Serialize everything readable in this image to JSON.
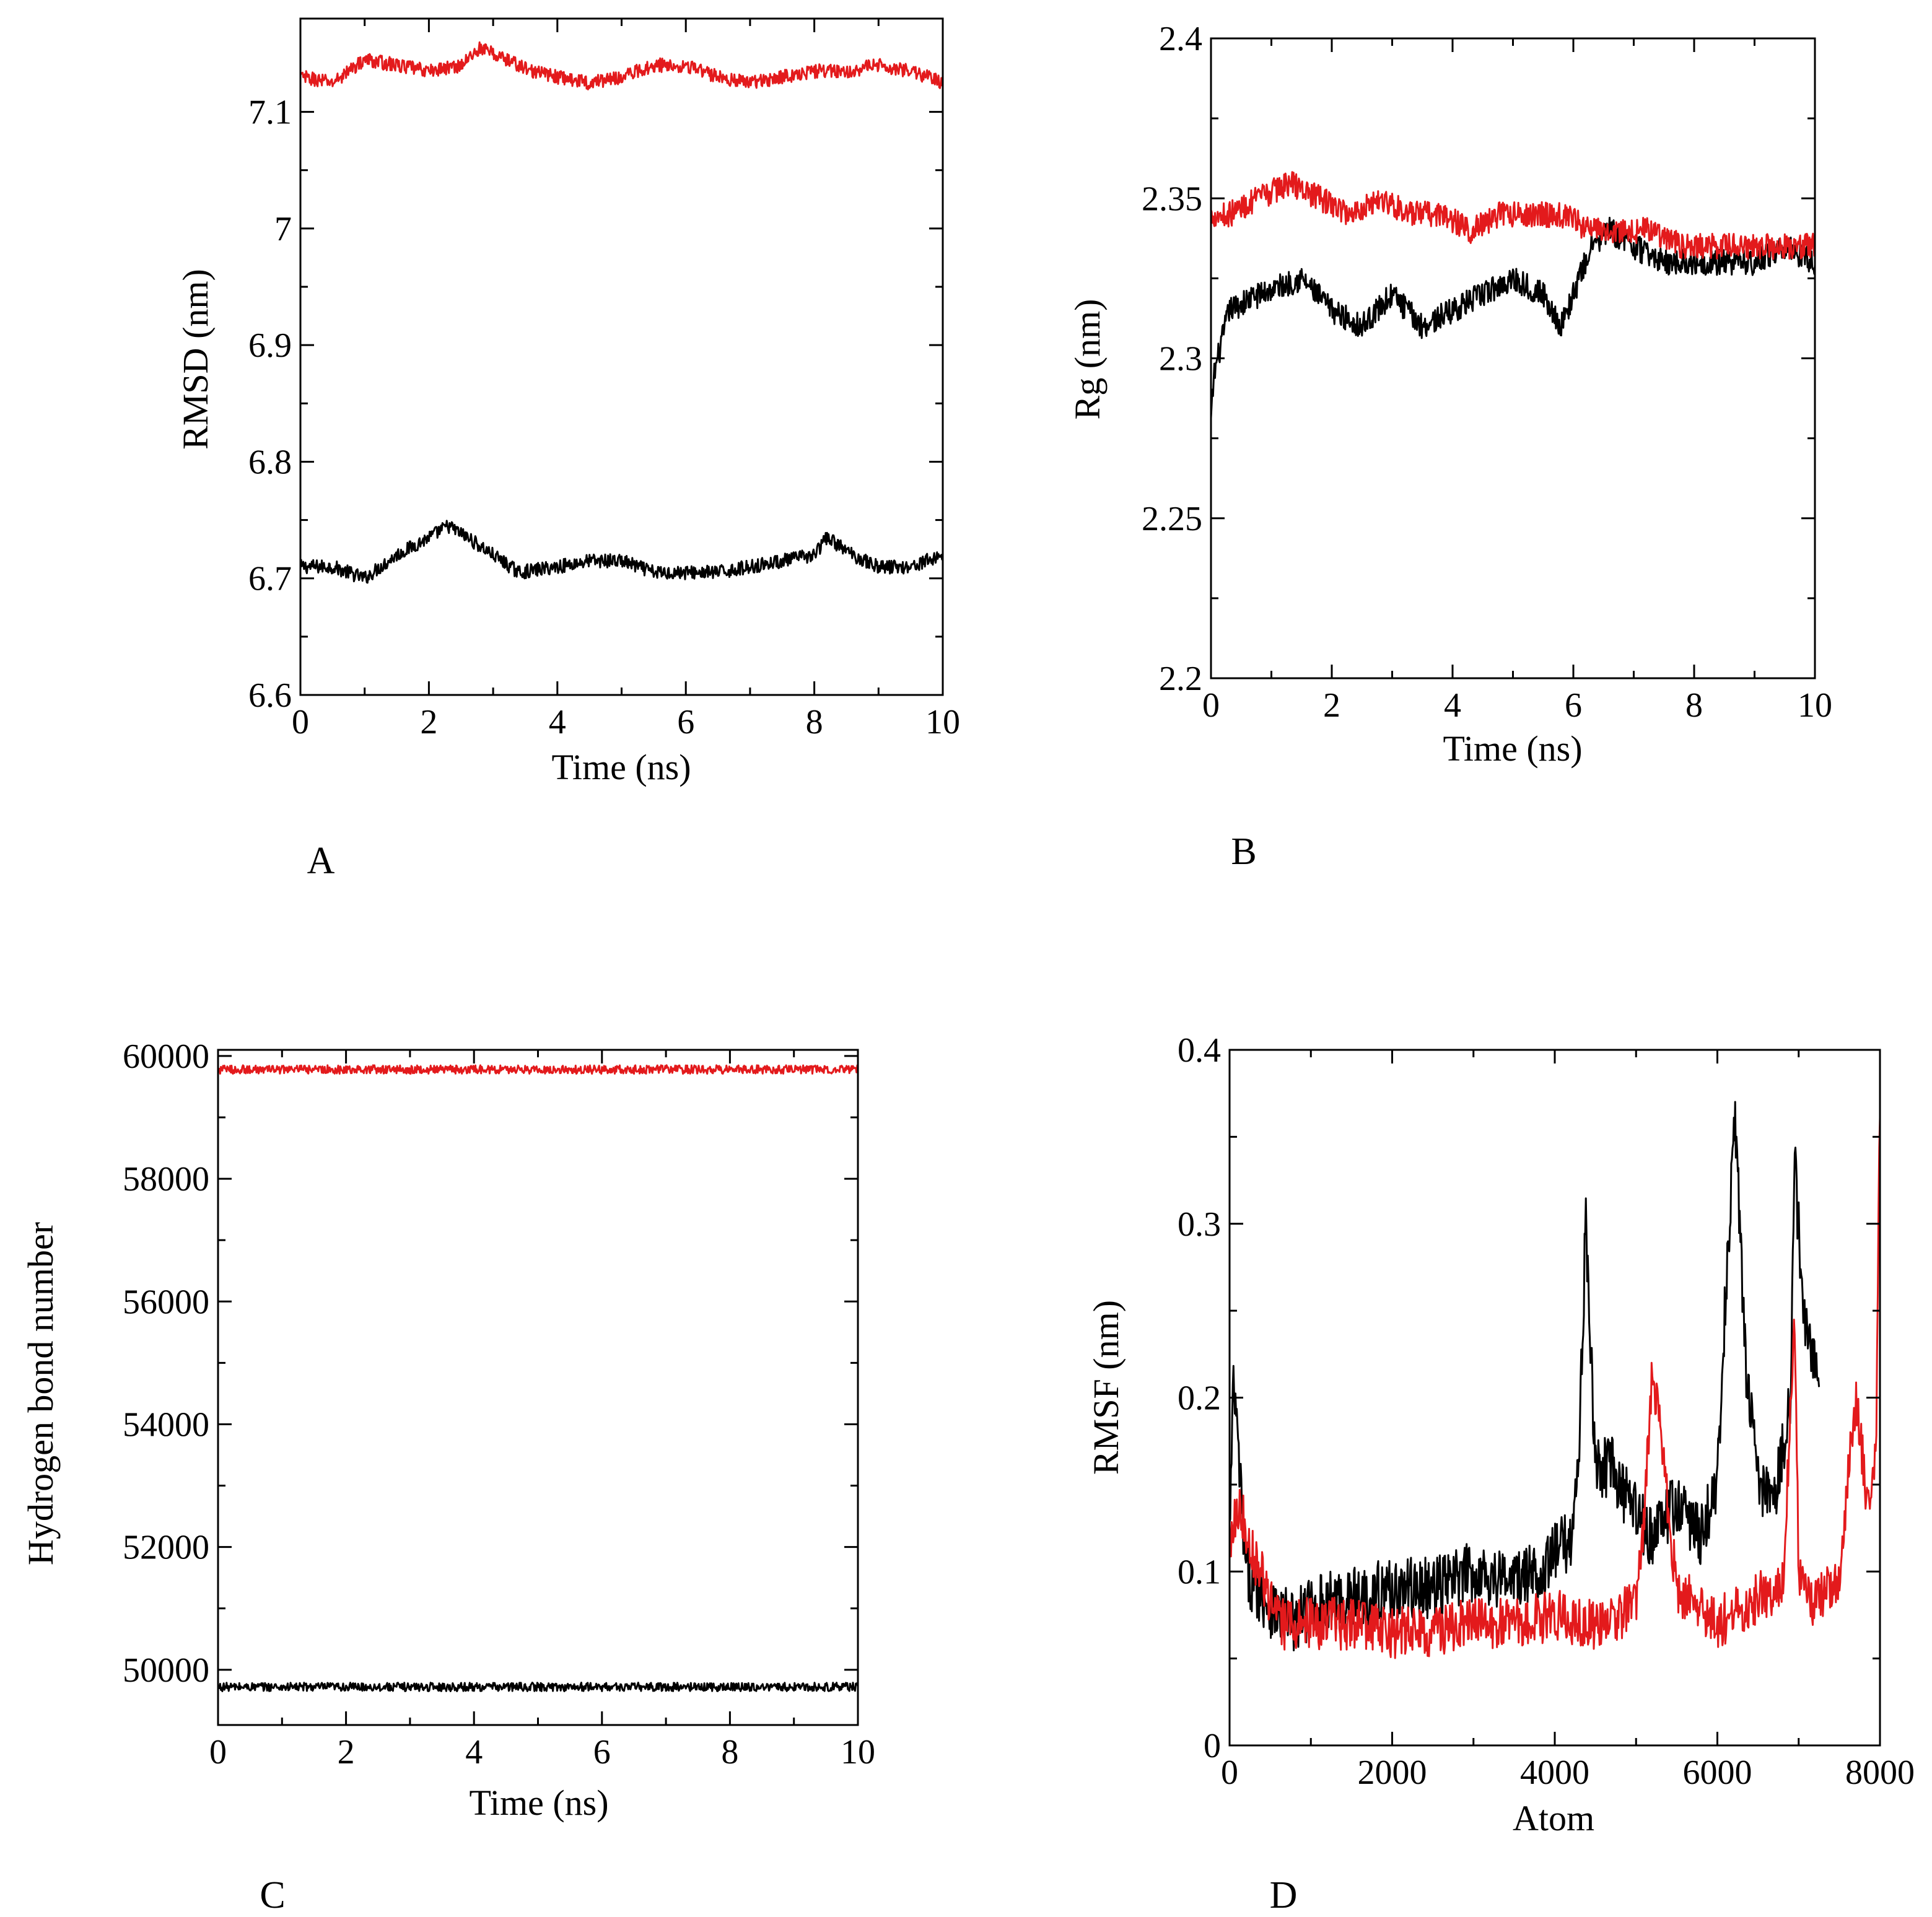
{
  "colors": {
    "series1": "#000000",
    "series2": "#e31a1c",
    "axis": "#000000"
  },
  "chart_data": [
    {
      "id": "A",
      "type": "line",
      "panel_label": "A",
      "title": "",
      "xlabel": "Time (ns)",
      "ylabel": "RMSD (nm)",
      "xlim": [
        0,
        10
      ],
      "ylim": [
        6.6,
        7.18
      ],
      "x_ticks": [
        0,
        2,
        4,
        6,
        8,
        10
      ],
      "x_tick_labels": [
        "0",
        "2",
        "4",
        "6",
        "8",
        "10"
      ],
      "y_ticks": [
        6.6,
        6.7,
        6.8,
        6.9,
        7,
        7.1
      ],
      "y_tick_labels": [
        "6.6",
        "6.7",
        "6.8",
        "6.9",
        "7",
        "7.1"
      ],
      "series": [
        {
          "name": "black",
          "color": "#000000",
          "noise": 0.006,
          "x": [
            0,
            0.5,
            1,
            1.5,
            2,
            2.3,
            2.6,
            3,
            3.4,
            4,
            4.5,
            5,
            5.5,
            6,
            6.5,
            7,
            7.5,
            8,
            8.2,
            8.6,
            9,
            9.5,
            10
          ],
          "y": [
            6.71,
            6.71,
            6.7,
            6.72,
            6.735,
            6.745,
            6.735,
            6.72,
            6.705,
            6.71,
            6.715,
            6.715,
            6.705,
            6.705,
            6.705,
            6.71,
            6.715,
            6.72,
            6.735,
            6.72,
            6.71,
            6.71,
            6.72
          ]
        },
        {
          "name": "red",
          "color": "#e31a1c",
          "noise": 0.006,
          "x": [
            0,
            0.5,
            1,
            1.5,
            2,
            2.5,
            2.8,
            3.2,
            3.6,
            4,
            4.5,
            5,
            5.5,
            6,
            6.5,
            7,
            7.5,
            8,
            8.5,
            9,
            9.5,
            10
          ],
          "y": [
            7.13,
            7.125,
            7.145,
            7.14,
            7.135,
            7.14,
            7.155,
            7.145,
            7.135,
            7.13,
            7.125,
            7.13,
            7.14,
            7.14,
            7.13,
            7.125,
            7.13,
            7.135,
            7.135,
            7.14,
            7.135,
            7.125
          ]
        }
      ]
    },
    {
      "id": "B",
      "type": "line",
      "panel_label": "B",
      "title": "",
      "xlabel": "Time (ns)",
      "ylabel": "Rg (nm)",
      "xlim": [
        0,
        10
      ],
      "ylim": [
        2.2,
        2.4
      ],
      "x_ticks": [
        0,
        2,
        4,
        6,
        8,
        10
      ],
      "x_tick_labels": [
        "0",
        "2",
        "4",
        "6",
        "8",
        "10"
      ],
      "y_ticks": [
        2.2,
        2.25,
        2.3,
        2.35,
        2.4
      ],
      "y_tick_labels": [
        "2.2",
        "2.25",
        "2.3",
        "2.35",
        "2.4"
      ],
      "series": [
        {
          "name": "black",
          "color": "#000000",
          "noise": 0.004,
          "x": [
            0,
            0.05,
            0.3,
            0.8,
            1.5,
            2,
            2.5,
            3,
            3.5,
            4,
            4.5,
            5,
            5.5,
            5.8,
            6,
            6.3,
            6.6,
            7,
            7.5,
            8,
            8.5,
            9,
            9.5,
            10
          ],
          "y": [
            2.28,
            2.295,
            2.315,
            2.32,
            2.325,
            2.315,
            2.31,
            2.32,
            2.31,
            2.315,
            2.32,
            2.325,
            2.32,
            2.31,
            2.32,
            2.335,
            2.34,
            2.335,
            2.33,
            2.33,
            2.33,
            2.33,
            2.335,
            2.33
          ]
        },
        {
          "name": "red",
          "color": "#e31a1c",
          "noise": 0.004,
          "x": [
            0,
            0.3,
            0.8,
            1.3,
            1.8,
            2.3,
            2.8,
            3.3,
            3.8,
            4.3,
            4.8,
            5.3,
            5.8,
            6.3,
            6.8,
            7.3,
            7.8,
            8.3,
            8.8,
            9.3,
            10
          ],
          "y": [
            2.345,
            2.345,
            2.35,
            2.355,
            2.35,
            2.345,
            2.35,
            2.345,
            2.345,
            2.34,
            2.345,
            2.345,
            2.345,
            2.34,
            2.34,
            2.34,
            2.335,
            2.335,
            2.335,
            2.335,
            2.335
          ]
        }
      ]
    },
    {
      "id": "C",
      "type": "line",
      "panel_label": "C",
      "title": "",
      "xlabel": "Time (ns)",
      "ylabel": "Hydrogen bond number",
      "xlim": [
        0,
        10
      ],
      "ylim": [
        49100,
        60100
      ],
      "x_ticks": [
        0,
        2,
        4,
        6,
        8,
        10
      ],
      "x_tick_labels": [
        "0",
        "2",
        "4",
        "6",
        "8",
        "10"
      ],
      "y_ticks": [
        50000,
        52000,
        54000,
        56000,
        58000,
        60000
      ],
      "y_tick_labels": [
        "50000",
        "52000",
        "54000",
        "56000",
        "58000",
        "60000"
      ],
      "series": [
        {
          "name": "black",
          "color": "#000000",
          "noise": 70,
          "x": [
            0,
            2,
            4,
            6,
            8,
            10
          ],
          "y": [
            49720,
            49720,
            49720,
            49720,
            49720,
            49720
          ]
        },
        {
          "name": "red",
          "color": "#e31a1c",
          "noise": 70,
          "x": [
            0,
            2,
            4,
            6,
            8,
            10
          ],
          "y": [
            59780,
            59780,
            59780,
            59780,
            59780,
            59780
          ]
        }
      ]
    },
    {
      "id": "D",
      "type": "line",
      "panel_label": "D",
      "title": "",
      "xlabel": "Atom",
      "ylabel": "RMSF (nm)",
      "xlim": [
        0,
        8000
      ],
      "ylim": [
        0,
        0.4
      ],
      "x_ticks": [
        0,
        2000,
        4000,
        6000,
        8000
      ],
      "x_tick_labels": [
        "0",
        "2000",
        "4000",
        "6000",
        "8000"
      ],
      "y_ticks": [
        0,
        0.1,
        0.2,
        0.3,
        0.4
      ],
      "y_tick_labels": [
        "0",
        "0.1",
        "0.2",
        "0.3",
        "0.4"
      ],
      "series": [
        {
          "name": "black",
          "color": "#000000",
          "noise": 0.018,
          "x": [
            0,
            50,
            200,
            500,
            800,
            1000,
            1500,
            2000,
            2500,
            3000,
            3500,
            3800,
            4000,
            4200,
            4300,
            4380,
            4500,
            4700,
            4900,
            5200,
            5500,
            5800,
            6000,
            6100,
            6220,
            6350,
            6500,
            6700,
            6900,
            6950,
            7050,
            7200,
            7250
          ],
          "y": [
            0.12,
            0.21,
            0.1,
            0.08,
            0.07,
            0.08,
            0.085,
            0.09,
            0.09,
            0.1,
            0.095,
            0.1,
            0.11,
            0.12,
            0.17,
            0.3,
            0.16,
            0.16,
            0.14,
            0.12,
            0.14,
            0.12,
            0.15,
            0.26,
            0.36,
            0.22,
            0.15,
            0.14,
            0.2,
            0.34,
            0.25,
            0.22,
            0.2
          ]
        },
        {
          "name": "red",
          "color": "#e31a1c",
          "noise": 0.015,
          "x": [
            0,
            100,
            300,
            600,
            1000,
            1500,
            2000,
            2500,
            3000,
            3500,
            4000,
            4500,
            5000,
            5100,
            5200,
            5500,
            6000,
            6500,
            6800,
            6950,
            7000,
            7200,
            7500,
            7700,
            7850,
            7950,
            8000
          ],
          "y": [
            0.12,
            0.14,
            0.11,
            0.07,
            0.07,
            0.07,
            0.065,
            0.065,
            0.07,
            0.07,
            0.075,
            0.07,
            0.08,
            0.13,
            0.22,
            0.09,
            0.07,
            0.085,
            0.09,
            0.24,
            0.1,
            0.08,
            0.1,
            0.2,
            0.14,
            0.17,
            0.37
          ]
        }
      ]
    }
  ]
}
